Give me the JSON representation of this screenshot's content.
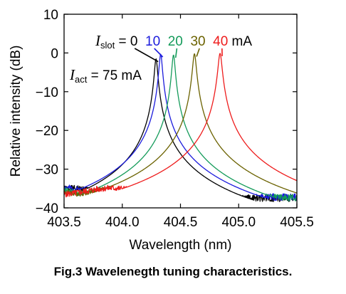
{
  "caption": "Fig.3 Wavelenegth tuning characteristics.",
  "chart_data": {
    "type": "line",
    "xlabel": "Wavelength (nm)",
    "ylabel": "Relative intensity (dB)",
    "xlim": [
      403.5,
      405.5
    ],
    "ylim": [
      -40,
      10
    ],
    "xticks": [
      "403.5",
      "404.0",
      "404.5",
      "405.0",
      "405.5"
    ],
    "yticks": [
      "10",
      "0",
      "−10",
      "−20",
      "−30",
      "−40"
    ],
    "xtick_values": [
      403.5,
      404.0,
      404.5,
      405.0,
      405.5
    ],
    "ytick_values": [
      10,
      0,
      -10,
      -20,
      -30,
      -40
    ],
    "grid": false,
    "annotations": {
      "islot_var": "I",
      "islot_sub": "slot",
      "islot_eq": " = ",
      "islot_unit": " mA",
      "iact_var": "I",
      "iact_sub": "act",
      "iact_text": " = 75 mA"
    },
    "series": [
      {
        "name": "0",
        "color": "#000000",
        "peak_x": 404.29,
        "peak_y": -1.5,
        "width": 0.025,
        "floor": -35.8,
        "mod_amp": 2.4,
        "mod_start": 403.95,
        "mod_period": 0.02,
        "tail": -37.5,
        "seed": 1
      },
      {
        "name": "10",
        "color": "#1c1cdc",
        "peak_x": 404.33,
        "peak_y": -0.3,
        "width": 0.025,
        "floor": -35.5,
        "mod_amp": 2.0,
        "mod_start": 404.0,
        "mod_period": 0.02,
        "tail": -37.2,
        "seed": 2
      },
      {
        "name": "20",
        "color": "#149b5a",
        "peak_x": 404.44,
        "peak_y": -0.5,
        "width": 0.025,
        "floor": -35.6,
        "mod_amp": 2.3,
        "mod_start": 404.1,
        "mod_period": 0.02,
        "tail": -37.4,
        "seed": 3
      },
      {
        "name": "30",
        "color": "#6b6200",
        "peak_x": 404.62,
        "peak_y": -0.2,
        "width": 0.028,
        "floor": -35.4,
        "mod_amp": 2.2,
        "mod_start": 404.3,
        "mod_period": 0.02,
        "tail": -37.0,
        "seed": 4
      },
      {
        "name": "40",
        "color": "#ee1c1c",
        "peak_x": 404.84,
        "peak_y": -0.1,
        "width": 0.03,
        "floor": -35.7,
        "mod_amp": 1.6,
        "mod_start": 404.55,
        "mod_period": 0.02,
        "tail": -37.6,
        "seed": 5
      }
    ]
  }
}
